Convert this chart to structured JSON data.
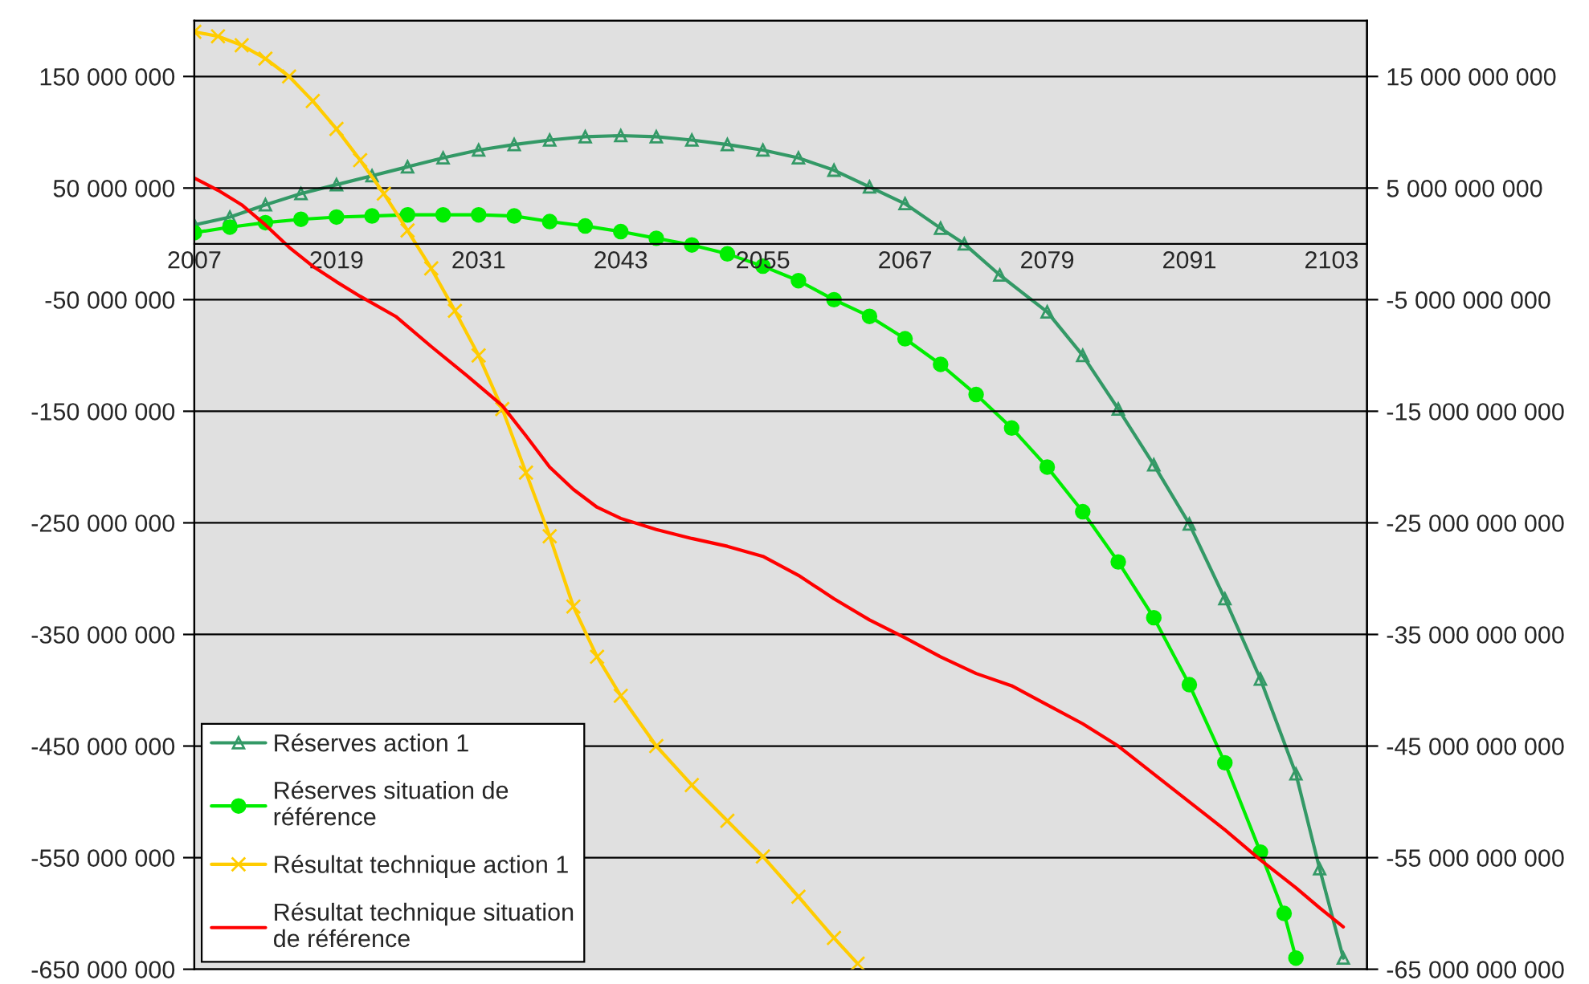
{
  "chart_data": {
    "type": "line",
    "xlim": [
      2007,
      2106
    ],
    "xticks": [
      2007,
      2019,
      2031,
      2043,
      2055,
      2067,
      2079,
      2091,
      2103
    ],
    "ylim": [
      -650000000,
      200000000
    ],
    "yticks": [
      {
        "value": 150000000,
        "label": "150 000 000"
      },
      {
        "value": 50000000,
        "label": "50 000 000"
      },
      {
        "value": -50000000,
        "label": "-50 000 000"
      },
      {
        "value": -150000000,
        "label": "-150 000 000"
      },
      {
        "value": -250000000,
        "label": "-250 000 000"
      },
      {
        "value": -350000000,
        "label": "-350 000 000"
      },
      {
        "value": -450000000,
        "label": "-450 000 000"
      },
      {
        "value": -550000000,
        "label": "-550 000 000"
      },
      {
        "value": -650000000,
        "label": "-650 000 000"
      }
    ],
    "y2lim": [
      -65000000000,
      20000000000
    ],
    "y2ticks": [
      {
        "value": 15000000000,
        "label": "15 000 000 000"
      },
      {
        "value": 5000000000,
        "label": "5 000 000 000"
      },
      {
        "value": -5000000000,
        "label": "-5 000 000 000"
      },
      {
        "value": -15000000000,
        "label": "-15 000 000 000"
      },
      {
        "value": -25000000000,
        "label": "-25 000 000 000"
      },
      {
        "value": -35000000000,
        "label": "-35 000 000 000"
      },
      {
        "value": -45000000000,
        "label": "-45 000 000 000"
      },
      {
        "value": -55000000000,
        "label": "-55 000 000 000"
      },
      {
        "value": -65000000000,
        "label": "-65 000 000 000"
      }
    ],
    "grid": "y",
    "legend": "bottom left",
    "series": [
      {
        "name": "Réserves action 1",
        "color": "#339966",
        "marker": "triangle",
        "axis": "y2",
        "x": [
          2007,
          2010,
          2013,
          2016,
          2019,
          2022,
          2025,
          2028,
          2031,
          2034,
          2037,
          2040,
          2043,
          2046,
          2049,
          2052,
          2055,
          2058,
          2061,
          2064,
          2067,
          2070,
          2072,
          2075,
          2079,
          2082,
          2085,
          2088,
          2091,
          2094,
          2097,
          2100,
          2102,
          2104
        ],
        "values": [
          1700000000.0,
          2400000000.0,
          3500000000.0,
          4500000000.0,
          5300000000.0,
          6100000000.0,
          6900000000.0,
          7700000000.0,
          8400000000.0,
          8900000000.0,
          9300000000.0,
          9600000000.0,
          9700000000.0,
          9600000000.0,
          9300000000.0,
          8900000000.0,
          8400000000.0,
          7700000000.0,
          6600000000.0,
          5100000000.0,
          3600000000.0,
          1400000000.0,
          0,
          -2800000000.0,
          -6100000000.0,
          -10000000000.0,
          -14800000000.0,
          -19800000000.0,
          -25100000000.0,
          -31800000000.0,
          -39000000000.0,
          -47500000000.0,
          -56000000000.0,
          -64000000000.0
        ]
      },
      {
        "name": "Réserves situation de référence",
        "color": "#00ee00",
        "marker": "circle",
        "axis": "y2",
        "x": [
          2007,
          2010,
          2013,
          2016,
          2019,
          2022,
          2025,
          2028,
          2031,
          2034,
          2037,
          2040,
          2043,
          2046,
          2049,
          2052,
          2055,
          2058,
          2061,
          2064,
          2067,
          2070,
          2073,
          2076,
          2079,
          2082,
          2085,
          2088,
          2091,
          2094,
          2097,
          2099,
          2100
        ],
        "values": [
          1000000000.0,
          1500000000.0,
          1900000000.0,
          2200000000.0,
          2400000000.0,
          2500000000.0,
          2600000000.0,
          2600000000.0,
          2600000000.0,
          2500000000.0,
          2000000000.0,
          1600000000.0,
          1100000000.0,
          500000000.0,
          -100000000.0,
          -900000000.0,
          -2000000000.0,
          -3300000000.0,
          -5000000000.0,
          -6500000000.0,
          -8500000000.0,
          -10800000000.0,
          -13500000000.0,
          -16500000000.0,
          -20000000000.0,
          -24000000000.0,
          -28500000000.0,
          -33500000000.0,
          -39500000000.0,
          -46500000000.0,
          -54500000000.0,
          -60000000000.0,
          -64000000000.0
        ]
      },
      {
        "name": "Résultat technique action 1",
        "color": "#ffcc00",
        "marker": "cross",
        "x": [
          2007,
          2009,
          2011,
          2013,
          2015,
          2017,
          2019,
          2021,
          2023,
          2025,
          2027,
          2029,
          2031,
          2033,
          2035,
          2037,
          2039,
          2041,
          2043,
          2046,
          2049,
          2052,
          2055,
          2058,
          2061,
          2063
        ],
        "values": [
          190000000.0,
          186000000.0,
          178000000.0,
          166000000.0,
          150000000.0,
          128000000.0,
          103000000.0,
          75000000.0,
          45000000.0,
          12000000.0,
          -22000000.0,
          -60000000.0,
          -100000000.0,
          -148000000.0,
          -205000000.0,
          -262000000.0,
          -325000000.0,
          -370000000.0,
          -405000000.0,
          -450000000.0,
          -485000000.0,
          -517000000.0,
          -549000000.0,
          -585000000.0,
          -622000000.0,
          -645000000.0
        ]
      },
      {
        "name": "Résultat technique situation de référence",
        "color": "#ff0000",
        "marker": "none",
        "x": [
          2007,
          2009,
          2011,
          2013,
          2015,
          2017,
          2019,
          2021,
          2024,
          2027,
          2030,
          2033,
          2035,
          2037,
          2039,
          2041,
          2043,
          2046,
          2049,
          2052,
          2055,
          2058,
          2061,
          2064,
          2067,
          2070,
          2073,
          2076,
          2079,
          2082,
          2085,
          2088,
          2091,
          2094,
          2097,
          2100,
          2102,
          2104
        ],
        "values": [
          59000000.0,
          48000000.0,
          35000000.0,
          17000000.0,
          -3000000.0,
          -20000000.0,
          -34000000.0,
          -47000000.0,
          -65000000.0,
          -92000000.0,
          -118000000.0,
          -145000000.0,
          -172000000.0,
          -200000000.0,
          -220000000.0,
          -236000000.0,
          -246000000.0,
          -256000000.0,
          -264000000.0,
          -271000000.0,
          -280000000.0,
          -297000000.0,
          -318000000.0,
          -337000000.0,
          -353000000.0,
          -370000000.0,
          -385000000.0,
          -396000000.0,
          -413000000.0,
          -430000000.0,
          -450000000.0,
          -475000000.0,
          -500000000.0,
          -525000000.0,
          -552000000.0,
          -577000000.0,
          -595000000.0,
          -612000000.0
        ]
      }
    ]
  }
}
